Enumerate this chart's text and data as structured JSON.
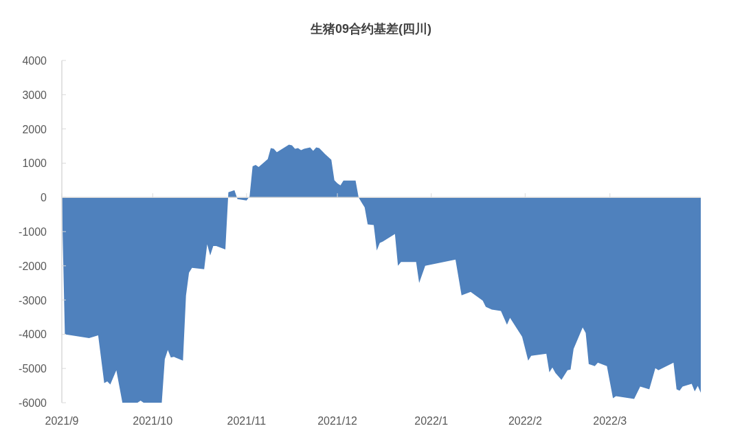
{
  "chart_data": {
    "type": "area",
    "title": "生猪09合约基差(四川)",
    "x": [
      "2021-09-01",
      "2021-09-02",
      "2021-09-10",
      "2021-09-13",
      "2021-09-15",
      "2021-09-16",
      "2021-09-17",
      "2021-09-19",
      "2021-09-21",
      "2021-09-26",
      "2021-09-27",
      "2021-09-28",
      "2021-10-04",
      "2021-10-05",
      "2021-10-06",
      "2021-10-07",
      "2021-10-08",
      "2021-10-11",
      "2021-10-12",
      "2021-10-13",
      "2021-10-14",
      "2021-10-18",
      "2021-10-19",
      "2021-10-20",
      "2021-10-21",
      "2021-10-22",
      "2021-10-25",
      "2021-10-26",
      "2021-10-28",
      "2021-10-29",
      "2021-11-01",
      "2021-11-02",
      "2021-11-03",
      "2021-11-04",
      "2021-11-05",
      "2021-11-08",
      "2021-11-09",
      "2021-11-10",
      "2021-11-11",
      "2021-11-15",
      "2021-11-16",
      "2021-11-17",
      "2021-11-18",
      "2021-11-19",
      "2021-11-20",
      "2021-11-22",
      "2021-11-23",
      "2021-11-24",
      "2021-11-25",
      "2021-11-27",
      "2021-11-29",
      "2021-11-30",
      "2021-12-01",
      "2021-12-02",
      "2021-12-03",
      "2021-12-07",
      "2021-12-08",
      "2021-12-09",
      "2021-12-10",
      "2021-12-11",
      "2021-12-13",
      "2021-12-14",
      "2021-12-15",
      "2021-12-16",
      "2021-12-20",
      "2021-12-21",
      "2021-12-22",
      "2021-12-27",
      "2021-12-28",
      "2021-12-30",
      "2022-01-09",
      "2022-01-11",
      "2022-01-14",
      "2022-01-18",
      "2022-01-19",
      "2022-01-21",
      "2022-01-24",
      "2022-01-26",
      "2022-01-27",
      "2022-01-31",
      "2022-02-02",
      "2022-02-03",
      "2022-02-08",
      "2022-02-09",
      "2022-02-10",
      "2022-02-11",
      "2022-02-13",
      "2022-02-15",
      "2022-02-16",
      "2022-02-17",
      "2022-02-20",
      "2022-02-21",
      "2022-02-22",
      "2022-02-24",
      "2022-02-25",
      "2022-02-28",
      "2022-03-02",
      "2022-03-03",
      "2022-03-09",
      "2022-03-11",
      "2022-03-14",
      "2022-03-16",
      "2022-03-17",
      "2022-03-22",
      "2022-03-23",
      "2022-03-24",
      "2022-03-25",
      "2022-03-28",
      "2022-03-29",
      "2022-03-30",
      "2022-03-31"
    ],
    "values": [
      0,
      -4000,
      -4110,
      -4030,
      -5430,
      -5380,
      -5470,
      -5050,
      -6000,
      -6000,
      -5940,
      -6000,
      -6000,
      -4730,
      -4460,
      -4680,
      -4660,
      -4770,
      -2870,
      -2200,
      -2060,
      -2100,
      -1370,
      -1700,
      -1420,
      -1420,
      -1520,
      150,
      210,
      -50,
      -90,
      30,
      910,
      950,
      890,
      1120,
      1440,
      1420,
      1320,
      1540,
      1520,
      1420,
      1440,
      1380,
      1420,
      1460,
      1360,
      1460,
      1440,
      1260,
      1100,
      500,
      410,
      350,
      490,
      490,
      0,
      -150,
      -290,
      -790,
      -810,
      -1550,
      -1330,
      -1290,
      -1070,
      -2000,
      -1890,
      -1890,
      -2500,
      -2000,
      -1820,
      -2860,
      -2760,
      -3020,
      -3200,
      -3280,
      -3320,
      -3720,
      -3520,
      -4070,
      -4770,
      -4630,
      -4570,
      -5110,
      -4970,
      -5130,
      -5330,
      -5050,
      -5030,
      -4430,
      -3800,
      -3960,
      -4870,
      -4930,
      -4830,
      -4930,
      -5870,
      -5810,
      -5890,
      -5530,
      -5610,
      -4990,
      -5050,
      -4830,
      -5610,
      -5650,
      -5530,
      -5450,
      -5670,
      -5510,
      -5710
    ],
    "color": "#4f81bd",
    "xlim": [
      "2021-09-01",
      "2022-03-31"
    ],
    "xticks": [
      {
        "value": "2021-09-01",
        "label": "2021/9"
      },
      {
        "value": "2021-10-01",
        "label": "2021/10"
      },
      {
        "value": "2021-11-01",
        "label": "2021/11"
      },
      {
        "value": "2021-12-01",
        "label": "2021/12"
      },
      {
        "value": "2022-01-01",
        "label": "2022/1"
      },
      {
        "value": "2022-02-01",
        "label": "2022/2"
      },
      {
        "value": "2022-03-01",
        "label": "2022/3"
      }
    ],
    "ylim": [
      -6000,
      4000
    ],
    "yticks": [
      4000,
      3000,
      2000,
      1000,
      0,
      -1000,
      -2000,
      -3000,
      -4000,
      -5000,
      -6000
    ],
    "legend": false
  }
}
